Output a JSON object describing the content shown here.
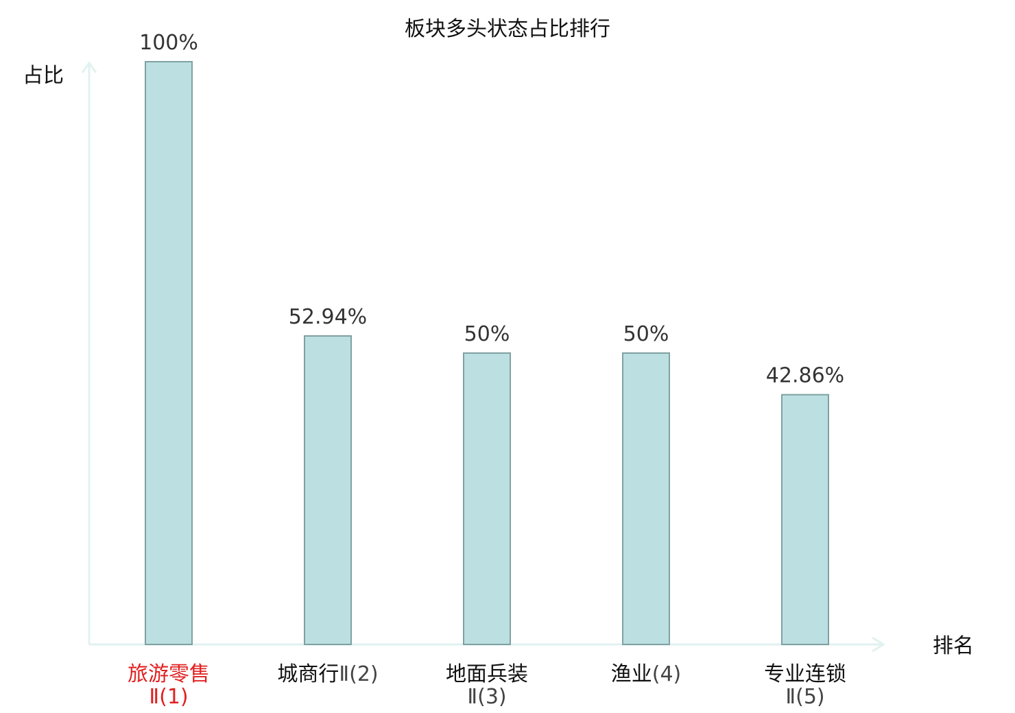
{
  "chart_data": {
    "type": "bar",
    "title": "板块多头状态占比排行",
    "ylabel": "占比",
    "xlabel": "排名",
    "ylim": [
      0,
      100
    ],
    "grid": false,
    "categories": [
      {
        "line1": "旅游零售",
        "line1_suffix": "",
        "line2": "Ⅱ(1)",
        "highlight": true
      },
      {
        "line1": "城商行",
        "line1_suffix": "Ⅱ(2)",
        "line2": "",
        "highlight": false
      },
      {
        "line1": "地面兵装",
        "line1_suffix": "",
        "line2": "Ⅱ(3)",
        "highlight": false
      },
      {
        "line1": "渔业",
        "line1_suffix": "(4)",
        "line2": "",
        "highlight": false
      },
      {
        "line1": "专业连锁",
        "line1_suffix": "",
        "line2": "Ⅱ(5)",
        "highlight": false
      }
    ],
    "values": [
      100,
      52.94,
      50,
      50,
      42.86
    ],
    "value_labels": [
      "100%",
      "52.94%",
      "50%",
      "50%",
      "42.86%"
    ],
    "colors": {
      "bar_fill": "#bce0e2",
      "bar_stroke": "#7fa0a2",
      "axis": "#e0f2f0",
      "highlight_text": "#e02020",
      "text": "#111111"
    }
  }
}
